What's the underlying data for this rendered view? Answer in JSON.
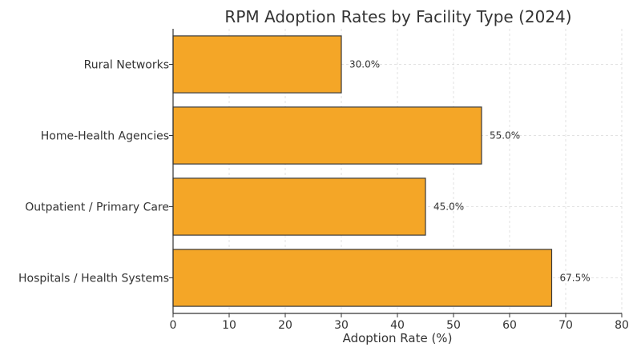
{
  "chart_data": {
    "type": "bar",
    "orientation": "horizontal",
    "title": "RPM Adoption Rates by Facility Type (2024)",
    "xlabel": "Adoption Rate (%)",
    "ylabel": "",
    "categories": [
      "Hospitals / Health Systems",
      "Outpatient / Primary Care",
      "Home-Health Agencies",
      "Rural Networks"
    ],
    "values": [
      67.5,
      45.0,
      55.0,
      30.0
    ],
    "data_labels": [
      "67.5%",
      "45.0%",
      "55.0%",
      "30.0%"
    ],
    "xlim": [
      0,
      80
    ],
    "xticks": [
      0,
      10,
      20,
      30,
      40,
      50,
      60,
      70,
      80
    ],
    "xtick_labels": [
      "0",
      "10",
      "20",
      "30",
      "40",
      "50",
      "60",
      "70",
      "80"
    ],
    "grid": true,
    "colors": {
      "bar": "#F4A627",
      "edge": "#3a3a3a",
      "grid": "#d9d9d9",
      "text": "#333333"
    }
  }
}
